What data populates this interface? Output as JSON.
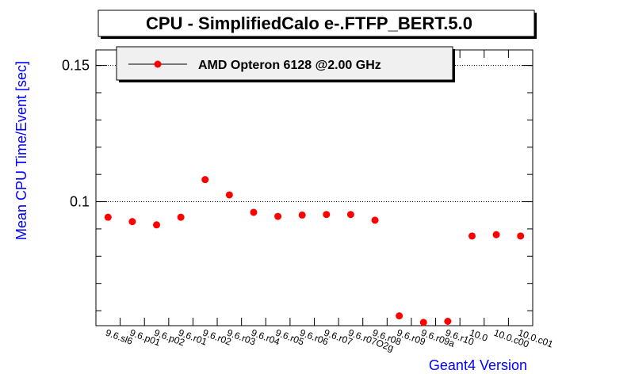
{
  "chart_data": {
    "type": "scatter",
    "title": "CPU - SimplifiedCalo e-.FTFP_BERT.5.0",
    "xlabel": "Geant4 Version",
    "ylabel": "Mean CPU Time/Event [sec]",
    "categories": [
      "9.6.sl6",
      "9.6.p01",
      "9.6.p02",
      "9.6.r01",
      "9.6.r02",
      "9.6.r03",
      "9.6.r04",
      "9.6.r05",
      "9.6.r06",
      "9.6.r07",
      "9.6.r07O2g",
      "9.6.r08",
      "9.6.r09",
      "9.6.r09a",
      "9.6.r10",
      "10.0",
      "10.0.c00",
      "10.0.c01"
    ],
    "series": [
      {
        "name": "AMD Opteron 6128 @2.00 GHz",
        "values": [
          0.0943,
          0.0927,
          0.0915,
          0.0943,
          0.1081,
          0.1025,
          0.0961,
          0.0946,
          0.0951,
          0.0953,
          0.0953,
          0.0932,
          0.0581,
          0.0557,
          0.0561,
          0.0874,
          0.0879,
          0.0874
        ],
        "color": "#ff0000"
      }
    ],
    "yticks": [
      0.1,
      0.15
    ],
    "ytick_labels": [
      "0.1",
      "0.15"
    ],
    "ylim": [
      0.0545,
      0.1557
    ],
    "grid": "horizontal dotted at major y ticks",
    "legend_position": "top-left"
  },
  "colors": {
    "axis_title": "#0000ff",
    "marker": "#ff0000",
    "legend_bg": "#f0f0f0"
  }
}
